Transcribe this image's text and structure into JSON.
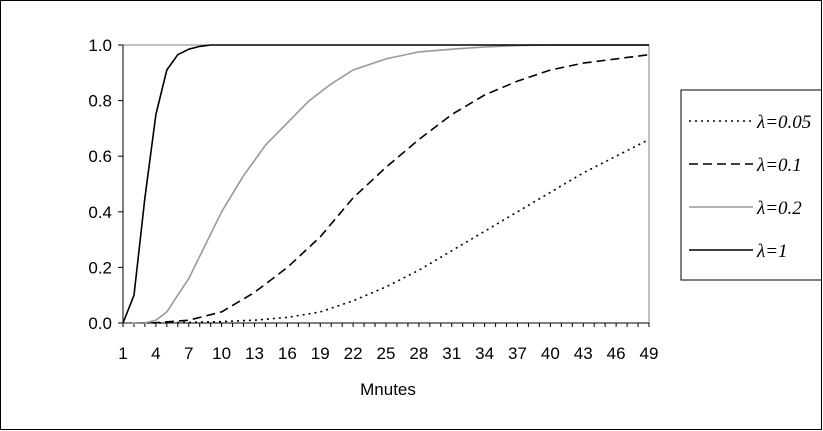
{
  "chart_data": {
    "type": "line",
    "title": "",
    "xlabel": "Mnutes",
    "ylabel": "",
    "xlim": [
      1,
      49
    ],
    "ylim": [
      0,
      1
    ],
    "x_ticks": [
      "1",
      "4",
      "7",
      "10",
      "13",
      "16",
      "19",
      "22",
      "25",
      "28",
      "31",
      "34",
      "37",
      "40",
      "43",
      "46",
      "49"
    ],
    "y_ticks": [
      "0.0",
      "0.2",
      "0.4",
      "0.6",
      "0.8",
      "1.0"
    ],
    "grid": false,
    "legend_position": "right",
    "series": [
      {
        "name": "λ=0.05",
        "style": "dotted",
        "color": "#000000",
        "points": [
          [
            1,
            0
          ],
          [
            4,
            0
          ],
          [
            7,
            0.002
          ],
          [
            10,
            0.005
          ],
          [
            13,
            0.01
          ],
          [
            16,
            0.02
          ],
          [
            19,
            0.04
          ],
          [
            22,
            0.08
          ],
          [
            25,
            0.13
          ],
          [
            28,
            0.19
          ],
          [
            31,
            0.26
          ],
          [
            34,
            0.33
          ],
          [
            37,
            0.4
          ],
          [
            40,
            0.47
          ],
          [
            43,
            0.54
          ],
          [
            46,
            0.6
          ],
          [
            49,
            0.66
          ]
        ]
      },
      {
        "name": "λ=0.1",
        "style": "dashed",
        "color": "#000000",
        "points": [
          [
            1,
            0
          ],
          [
            4,
            0.001
          ],
          [
            7,
            0.01
          ],
          [
            10,
            0.04
          ],
          [
            13,
            0.11
          ],
          [
            16,
            0.2
          ],
          [
            19,
            0.31
          ],
          [
            22,
            0.45
          ],
          [
            25,
            0.56
          ],
          [
            28,
            0.66
          ],
          [
            31,
            0.75
          ],
          [
            34,
            0.82
          ],
          [
            37,
            0.87
          ],
          [
            40,
            0.91
          ],
          [
            43,
            0.935
          ],
          [
            46,
            0.95
          ],
          [
            49,
            0.965
          ]
        ]
      },
      {
        "name": "λ=0.2",
        "style": "solid",
        "color": "#999999",
        "points": [
          [
            1,
            0
          ],
          [
            3,
            0
          ],
          [
            4,
            0.01
          ],
          [
            5,
            0.04
          ],
          [
            6,
            0.1
          ],
          [
            7,
            0.16
          ],
          [
            8,
            0.24
          ],
          [
            10,
            0.4
          ],
          [
            12,
            0.53
          ],
          [
            14,
            0.64
          ],
          [
            16,
            0.72
          ],
          [
            18,
            0.8
          ],
          [
            20,
            0.86
          ],
          [
            22,
            0.91
          ],
          [
            25,
            0.95
          ],
          [
            28,
            0.975
          ],
          [
            31,
            0.985
          ],
          [
            34,
            0.993
          ],
          [
            37,
            0.998
          ],
          [
            40,
            1.0
          ],
          [
            49,
            1.0
          ]
        ]
      },
      {
        "name": "λ=1",
        "style": "solid",
        "color": "#000000",
        "points": [
          [
            1,
            0
          ],
          [
            2,
            0.1
          ],
          [
            3,
            0.45
          ],
          [
            4,
            0.75
          ],
          [
            5,
            0.91
          ],
          [
            6,
            0.965
          ],
          [
            7,
            0.985
          ],
          [
            8,
            0.995
          ],
          [
            9,
            1.0
          ],
          [
            49,
            1.0
          ]
        ]
      }
    ]
  }
}
